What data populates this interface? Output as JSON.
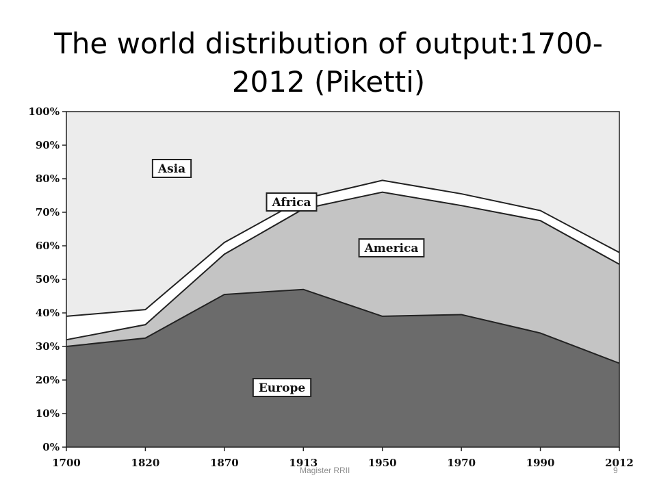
{
  "slide": {
    "title": "The world distribution of output:1700-2012 (Piketti)",
    "footer": "Magister RRII",
    "page_number": "9"
  },
  "colors": {
    "europe": "#6b6b6b",
    "america": "#c4c4c4",
    "africa": "#ffffff",
    "asia": "#ececec",
    "outline": "#222222",
    "label_box": "#ffffff"
  },
  "chart_data": {
    "type": "area",
    "stacked": true,
    "title": "",
    "xlabel": "",
    "ylabel": "",
    "x": [
      1700,
      1820,
      1870,
      1913,
      1950,
      1970,
      1990,
      2012
    ],
    "x_tick_labels": [
      "1700",
      "1820",
      "1870",
      "1913",
      "1950",
      "1970",
      "1990",
      "2012"
    ],
    "ylim": [
      0,
      100
    ],
    "y_ticks": [
      0,
      10,
      20,
      30,
      40,
      50,
      60,
      70,
      80,
      90,
      100
    ],
    "y_tick_labels": [
      "0%",
      "10%",
      "20%",
      "30%",
      "40%",
      "50%",
      "60%",
      "70%",
      "80%",
      "90%",
      "100%"
    ],
    "series": [
      {
        "name": "Europe",
        "values": [
          30,
          32.5,
          45.5,
          47,
          39,
          39.5,
          34,
          25
        ]
      },
      {
        "name": "America",
        "values": [
          2,
          4,
          12,
          24,
          37,
          32.5,
          33.5,
          29.5
        ]
      },
      {
        "name": "Africa",
        "values": [
          7,
          4.5,
          3.5,
          3,
          3.5,
          3.5,
          3,
          3.5
        ]
      },
      {
        "name": "Asia",
        "values": [
          61,
          59,
          39,
          26,
          20.5,
          24.5,
          29.5,
          42
        ]
      }
    ],
    "grid": false,
    "legend": "labels inside areas",
    "x_spacing": "categorical-equal"
  }
}
